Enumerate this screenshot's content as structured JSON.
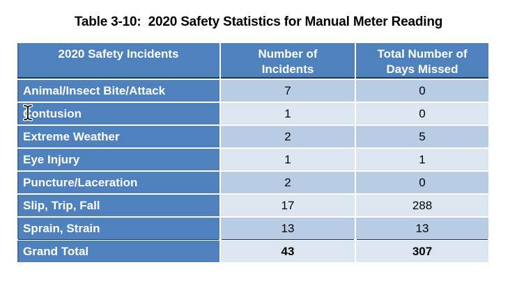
{
  "title": "Table 3-10:  2020 Safety Statistics for Manual Meter Reading",
  "table": {
    "headers": [
      "2020 Safety Incidents",
      "Number of\nIncidents",
      "Total Number of\nDays Missed"
    ],
    "rows": [
      {
        "incident": "Animal/Insect Bite/Attack",
        "num_incidents": "7",
        "days_missed": "0"
      },
      {
        "incident": "Contusion",
        "num_incidents": "1",
        "days_missed": "0"
      },
      {
        "incident": "Extreme Weather",
        "num_incidents": "2",
        "days_missed": "5"
      },
      {
        "incident": "Eye Injury",
        "num_incidents": "1",
        "days_missed": "1"
      },
      {
        "incident": "Puncture/Laceration",
        "num_incidents": "2",
        "days_missed": "0"
      },
      {
        "incident": "Slip, Trip, Fall",
        "num_incidents": "17",
        "days_missed": "288"
      },
      {
        "incident": "Sprain, Strain",
        "num_incidents": "13",
        "days_missed": "13"
      },
      {
        "incident": "Grand Total",
        "num_incidents": "43",
        "days_missed": "307",
        "is_total": true
      }
    ]
  },
  "colors": {
    "page_bg": "#FFFFFF",
    "title_text": "#000000",
    "header_bg": "#4F81BD",
    "label_bg": "#4F81BD",
    "header_text": "#FFFFFF",
    "row_medium": "#B8CCE4",
    "row_light": "#DCE6F1",
    "divider_dark": "#17365D",
    "data_text": "#000000"
  },
  "cursor": {
    "name": "text-ibeam-cursor",
    "over_text": "Contusion"
  }
}
